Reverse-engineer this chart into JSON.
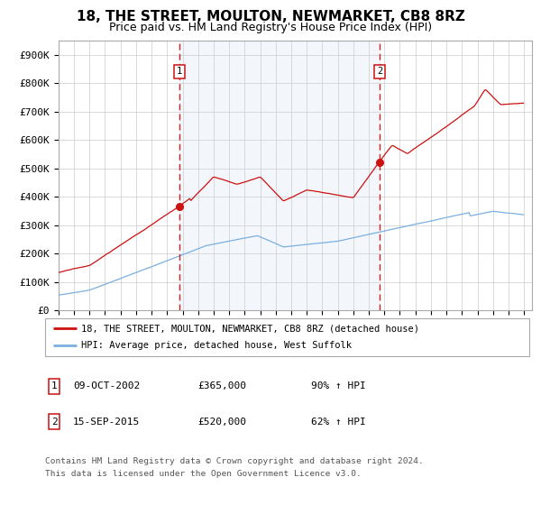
{
  "title": "18, THE STREET, MOULTON, NEWMARKET, CB8 8RZ",
  "subtitle": "Price paid vs. HM Land Registry's House Price Index (HPI)",
  "ylabel_ticks": [
    "£0",
    "£100K",
    "£200K",
    "£300K",
    "£400K",
    "£500K",
    "£600K",
    "£700K",
    "£800K",
    "£900K"
  ],
  "ytick_values": [
    0,
    100000,
    200000,
    300000,
    400000,
    500000,
    600000,
    700000,
    800000,
    900000
  ],
  "ylim": [
    0,
    950000
  ],
  "xlim_start": 1995.0,
  "xlim_end": 2025.5,
  "hpi_color": "#7ab0e0",
  "property_color": "#cc1111",
  "purchase1_x": 2002.77,
  "purchase1_y": 365000,
  "purchase2_x": 2015.71,
  "purchase2_y": 520000,
  "legend_property": "18, THE STREET, MOULTON, NEWMARKET, CB8 8RZ (detached house)",
  "legend_hpi": "HPI: Average price, detached house, West Suffolk",
  "annotation1_label": "1",
  "annotation1_date": "09-OCT-2002",
  "annotation1_price": "£365,000",
  "annotation1_hpi": "90% ↑ HPI",
  "annotation2_label": "2",
  "annotation2_date": "15-SEP-2015",
  "annotation2_price": "£520,000",
  "annotation2_hpi": "62% ↑ HPI",
  "footnote1": "Contains HM Land Registry data © Crown copyright and database right 2024.",
  "footnote2": "This data is licensed under the Open Government Licence v3.0.",
  "grid_color": "#cccccc",
  "title_fontsize": 11,
  "subtitle_fontsize": 9
}
